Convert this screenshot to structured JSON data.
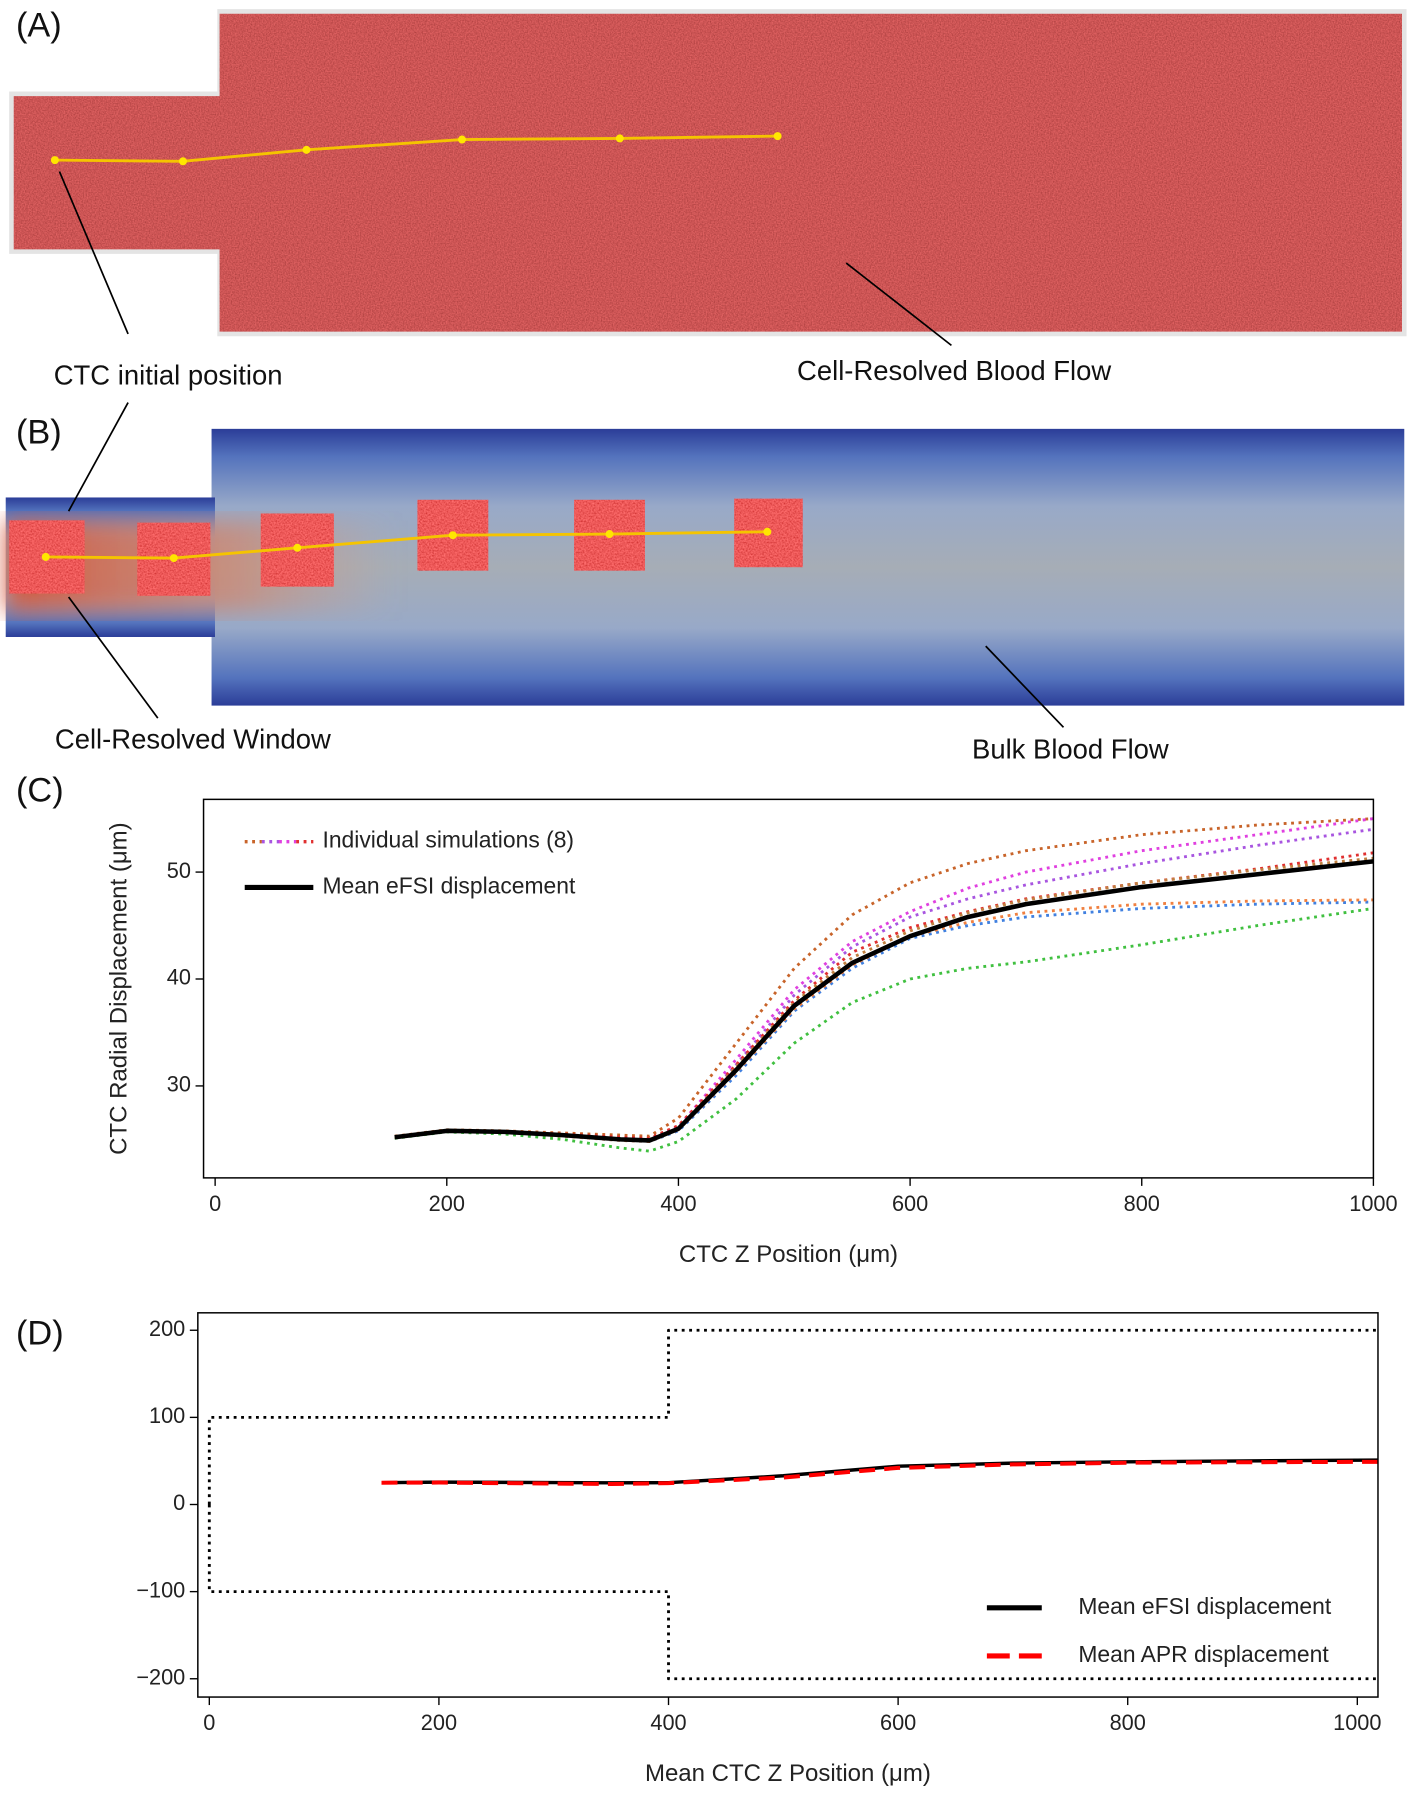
{
  "panel_labels": [
    "(A)",
    "(B)",
    "(C)",
    "(D)"
  ],
  "panel_a": {
    "annotations": [
      "CTC initial position",
      "Cell-Resolved Blood Flow"
    ]
  },
  "panel_b": {
    "annotations": [
      "Cell-Resolved Window",
      "Bulk Blood Flow"
    ]
  },
  "chart_data": [
    {
      "type": "line",
      "xlabel": "CTC Z Position (μm)",
      "ylabel": "CTC Radial Displacement (μm)",
      "x": [
        155,
        200,
        250,
        300,
        350,
        375,
        400,
        450,
        500,
        550,
        600,
        650,
        700,
        800,
        900,
        1000
      ],
      "xlim": [
        -10,
        1000
      ],
      "ylim": [
        21.4,
        56.8
      ],
      "xticks": [
        0,
        200,
        400,
        600,
        800,
        1000
      ],
      "yticks": [
        30,
        40,
        50
      ],
      "legend": "upper left",
      "individual_label": "Individual simulations (8)",
      "series": [
        {
          "color": "#c8642a",
          "style": "dotted",
          "values": [
            25.3,
            25.9,
            25.8,
            25.6,
            25.4,
            25.3,
            27,
            34,
            41,
            46,
            49,
            50.8,
            52,
            53.5,
            54.4,
            55
          ]
        },
        {
          "color": "#a855e0",
          "style": "dotted",
          "values": [
            25.2,
            25.8,
            25.7,
            25.4,
            25.1,
            25,
            26,
            32,
            38.5,
            43,
            45.8,
            47.5,
            48.8,
            50.8,
            52.5,
            54
          ]
        },
        {
          "color": "#e040e0",
          "style": "dotted",
          "values": [
            25.2,
            25.8,
            25.7,
            25.4,
            25.1,
            25,
            26.2,
            32.5,
            39,
            43.5,
            46.3,
            48.5,
            50,
            52,
            53.5,
            55
          ]
        },
        {
          "color": "#e03030",
          "style": "dotted",
          "values": [
            25.2,
            25.8,
            25.7,
            25.5,
            25.2,
            25.1,
            26.3,
            32,
            38,
            42.5,
            44.8,
            46.3,
            47.5,
            49,
            50.3,
            51.8
          ]
        },
        {
          "color": "#4080e0",
          "style": "dotted",
          "values": [
            25.2,
            25.8,
            25.6,
            25.3,
            24.9,
            24.8,
            25.8,
            31,
            37,
            41,
            43.8,
            45,
            45.8,
            46.6,
            47,
            47.2
          ]
        },
        {
          "color": "#f08040",
          "style": "dotted",
          "values": [
            25.2,
            25.8,
            25.6,
            25.3,
            24.9,
            24.8,
            25.9,
            31.3,
            37.2,
            41.3,
            44,
            45.3,
            46.2,
            47,
            47.3,
            47.4
          ]
        },
        {
          "color": "#40c040",
          "style": "dotted",
          "values": [
            25.1,
            25.7,
            25.5,
            25,
            24.2,
            23.9,
            24.8,
            28.8,
            34,
            37.8,
            40,
            41,
            41.6,
            43.2,
            45,
            46.6
          ]
        },
        {
          "color": "#c08040",
          "style": "dotted",
          "values": [
            25.2,
            25.8,
            25.7,
            25.4,
            25,
            24.9,
            26.1,
            31.8,
            37.8,
            42,
            44.5,
            46.2,
            47.4,
            49,
            50.2,
            51.3
          ]
        },
        {
          "name": "Mean eFSI displacement",
          "color": "#000000",
          "style": "solid",
          "values": [
            25.2,
            25.8,
            25.7,
            25.4,
            25,
            24.9,
            26,
            31.5,
            37.5,
            41.5,
            44,
            45.8,
            47,
            48.6,
            49.8,
            51
          ]
        }
      ]
    },
    {
      "type": "line",
      "xlabel": "Mean CTC Z Position (μm)",
      "xlim": [
        -10,
        1018
      ],
      "ylim": [
        -221,
        220
      ],
      "xticks": [
        0,
        200,
        400,
        600,
        800,
        1000
      ],
      "yticks": [
        {
          "value": -200,
          "label": "−200"
        },
        {
          "value": -100,
          "label": "−100"
        },
        0,
        100,
        200
      ],
      "legend": "lower right",
      "series": [
        {
          "color": "#000000",
          "style": "dotted",
          "x": [
            0,
            0,
            400,
            400,
            1018
          ],
          "values": [
            0,
            100,
            100,
            200,
            200
          ]
        },
        {
          "color": "#000000",
          "style": "dotted",
          "x": [
            0,
            0,
            400,
            400,
            1018
          ],
          "values": [
            0,
            -100,
            -100,
            -200,
            -200
          ]
        },
        {
          "name": "Mean eFSI displacement",
          "color": "#000000",
          "style": "solid",
          "x": [
            150,
            200,
            300,
            350,
            400,
            500,
            600,
            700,
            800,
            900,
            1018
          ],
          "values": [
            25,
            25.7,
            25.2,
            24.9,
            25,
            33,
            44,
            47.5,
            49,
            50,
            51
          ]
        },
        {
          "name": "Mean APR displacement",
          "color": "#ff0000",
          "style": "dashed",
          "x": [
            150,
            200,
            300,
            350,
            400,
            500,
            600,
            700,
            800,
            900,
            1018
          ],
          "values": [
            25,
            25.2,
            24,
            23.5,
            24.5,
            31,
            42,
            46,
            48,
            48.5,
            49
          ]
        }
      ]
    }
  ]
}
